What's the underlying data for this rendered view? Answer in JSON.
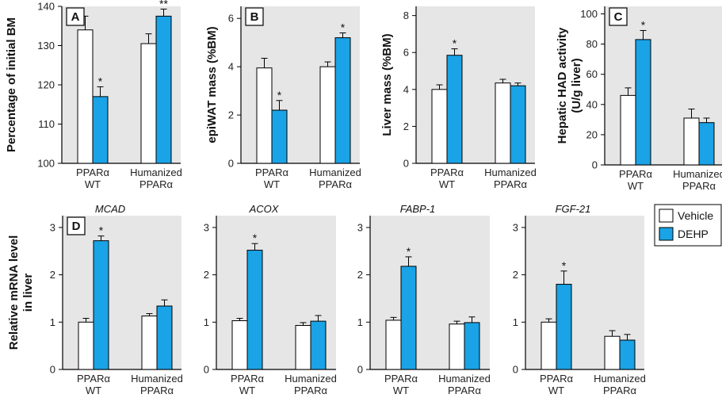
{
  "colors": {
    "vehicle": "#ffffff",
    "dehp": "#1aa3e6",
    "panel_bg": "#e6e6e6",
    "axis": "#000000"
  },
  "legend": {
    "items": [
      {
        "label": "Vehicle",
        "color": "#ffffff"
      },
      {
        "label": "DEHP",
        "color": "#1aa3e6"
      }
    ]
  },
  "chart_data": [
    {
      "id": "bm",
      "panel": "A",
      "type": "bar",
      "ylabel": "Percentage of initial BM",
      "title": "",
      "ylim": [
        100,
        140
      ],
      "yticks": [
        100,
        110,
        120,
        130,
        140
      ],
      "categories": [
        [
          "PPARα",
          "WT"
        ],
        [
          "Humanized",
          "PPARα"
        ]
      ],
      "series": [
        {
          "name": "Vehicle",
          "values": [
            134,
            130.5
          ],
          "errors": [
            3.5,
            2.5
          ]
        },
        {
          "name": "DEHP",
          "values": [
            117,
            137.5
          ],
          "errors": [
            2.5,
            1.8
          ]
        }
      ],
      "annotations": [
        {
          "category": 0,
          "series": 1,
          "text": "*"
        },
        {
          "category": 1,
          "series": 1,
          "text": "**"
        }
      ]
    },
    {
      "id": "epiwat",
      "panel": "B",
      "type": "bar",
      "ylabel": "epiWAT mass (%BM)",
      "title": "",
      "ylim": [
        0,
        6.5
      ],
      "yticks": [
        0,
        2,
        4,
        6
      ],
      "categories": [
        [
          "PPARα",
          "WT"
        ],
        [
          "Humanized",
          "PPARα"
        ]
      ],
      "series": [
        {
          "name": "Vehicle",
          "values": [
            3.95,
            4.0
          ],
          "errors": [
            0.4,
            0.2
          ]
        },
        {
          "name": "DEHP",
          "values": [
            2.2,
            5.2
          ],
          "errors": [
            0.4,
            0.2
          ]
        }
      ],
      "annotations": [
        {
          "category": 0,
          "series": 1,
          "text": "*"
        },
        {
          "category": 1,
          "series": 1,
          "text": "*"
        }
      ]
    },
    {
      "id": "liver",
      "panel": "",
      "type": "bar",
      "ylabel": "Liver mass (%BM)",
      "title": "",
      "ylim": [
        0,
        8.5
      ],
      "yticks": [
        0,
        2,
        4,
        6,
        8
      ],
      "categories": [
        [
          "PPARα",
          "WT"
        ],
        [
          "Humanized",
          "PPARα"
        ]
      ],
      "series": [
        {
          "name": "Vehicle",
          "values": [
            4.0,
            4.35
          ],
          "errors": [
            0.25,
            0.2
          ]
        },
        {
          "name": "DEHP",
          "values": [
            5.85,
            4.2
          ],
          "errors": [
            0.35,
            0.15
          ]
        }
      ],
      "annotations": [
        {
          "category": 0,
          "series": 1,
          "text": "*"
        }
      ]
    },
    {
      "id": "had",
      "panel": "C",
      "type": "bar",
      "ylabel": "Hepatic HAD activity (U/g liver)",
      "title": "",
      "ylim": [
        0,
        105
      ],
      "yticks": [
        0,
        20,
        40,
        60,
        80,
        100
      ],
      "categories": [
        [
          "PPARα",
          "WT"
        ],
        [
          "Humanized",
          "PPARα"
        ]
      ],
      "series": [
        {
          "name": "Vehicle",
          "values": [
            46,
            31
          ],
          "errors": [
            5,
            6
          ]
        },
        {
          "name": "DEHP",
          "values": [
            83,
            28
          ],
          "errors": [
            6,
            3
          ]
        }
      ],
      "annotations": [
        {
          "category": 0,
          "series": 1,
          "text": "*"
        }
      ]
    },
    {
      "id": "mcad",
      "panel": "D",
      "type": "bar",
      "ylabel": "Relative mRNA level in liver",
      "title": "MCAD",
      "ylim": [
        0,
        3.25
      ],
      "yticks": [
        0,
        1,
        2,
        3
      ],
      "categories": [
        [
          "PPARα",
          "WT"
        ],
        [
          "Humanized",
          "PPARα"
        ]
      ],
      "series": [
        {
          "name": "Vehicle",
          "values": [
            1.0,
            1.13
          ],
          "errors": [
            0.08,
            0.05
          ]
        },
        {
          "name": "DEHP",
          "values": [
            2.72,
            1.34
          ],
          "errors": [
            0.1,
            0.13
          ]
        }
      ],
      "annotations": [
        {
          "category": 0,
          "series": 1,
          "text": "*"
        }
      ]
    },
    {
      "id": "acox",
      "panel": "",
      "type": "bar",
      "ylabel": "",
      "title": "ACOX",
      "ylim": [
        0,
        3.25
      ],
      "yticks": [
        0,
        1,
        2,
        3
      ],
      "categories": [
        [
          "PPARα",
          "WT"
        ],
        [
          "Humanized",
          "PPARα"
        ]
      ],
      "series": [
        {
          "name": "Vehicle",
          "values": [
            1.03,
            0.93
          ],
          "errors": [
            0.05,
            0.06
          ]
        },
        {
          "name": "DEHP",
          "values": [
            2.52,
            1.02
          ],
          "errors": [
            0.14,
            0.12
          ]
        }
      ],
      "annotations": [
        {
          "category": 0,
          "series": 1,
          "text": "*"
        }
      ]
    },
    {
      "id": "fabp1",
      "panel": "",
      "type": "bar",
      "ylabel": "",
      "title": "FABP-1",
      "ylim": [
        0,
        3.25
      ],
      "yticks": [
        0,
        1,
        2,
        3
      ],
      "categories": [
        [
          "PPARα",
          "WT"
        ],
        [
          "Humanized",
          "PPARα"
        ]
      ],
      "series": [
        {
          "name": "Vehicle",
          "values": [
            1.04,
            0.96
          ],
          "errors": [
            0.06,
            0.06
          ]
        },
        {
          "name": "DEHP",
          "values": [
            2.18,
            0.99
          ],
          "errors": [
            0.2,
            0.12
          ]
        }
      ],
      "annotations": [
        {
          "category": 0,
          "series": 1,
          "text": "*"
        }
      ]
    },
    {
      "id": "fgf21",
      "panel": "",
      "type": "bar",
      "ylabel": "",
      "title": "FGF-21",
      "ylim": [
        0,
        3.25
      ],
      "yticks": [
        0,
        1,
        2,
        3
      ],
      "categories": [
        [
          "PPARα",
          "WT"
        ],
        [
          "Humanized",
          "PPARα"
        ]
      ],
      "series": [
        {
          "name": "Vehicle",
          "values": [
            1.0,
            0.7
          ],
          "errors": [
            0.07,
            0.12
          ]
        },
        {
          "name": "DEHP",
          "values": [
            1.8,
            0.62
          ],
          "errors": [
            0.28,
            0.12
          ]
        }
      ],
      "annotations": [
        {
          "category": 0,
          "series": 1,
          "text": "*"
        }
      ]
    }
  ]
}
